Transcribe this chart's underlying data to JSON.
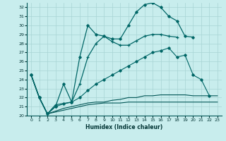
{
  "xlabel": "Humidex (Indice chaleur)",
  "bg_color": "#c8eded",
  "grid_color": "#a8d4d4",
  "xlim": [
    -0.5,
    23.5
  ],
  "ylim": [
    20,
    32.5
  ],
  "yticks": [
    20,
    21,
    22,
    23,
    24,
    25,
    26,
    27,
    28,
    29,
    30,
    31,
    32
  ],
  "xticks": [
    0,
    1,
    2,
    3,
    4,
    5,
    6,
    7,
    8,
    9,
    10,
    11,
    12,
    13,
    14,
    15,
    16,
    17,
    18,
    19,
    20,
    21,
    22,
    23
  ],
  "series1_x": [
    0,
    1,
    2,
    3,
    4,
    5,
    6,
    7,
    8,
    9,
    10,
    11,
    12,
    13,
    14,
    15,
    16,
    17,
    18,
    19,
    20
  ],
  "series1_y": [
    24.5,
    22.0,
    20.2,
    21.0,
    23.5,
    21.5,
    26.5,
    30.0,
    29.0,
    28.8,
    28.5,
    28.5,
    30.0,
    31.5,
    32.3,
    32.5,
    32.0,
    31.0,
    30.5,
    28.8,
    28.7
  ],
  "series2_x": [
    0,
    1,
    2,
    3,
    5,
    6,
    7,
    8,
    9,
    10,
    11,
    12,
    13,
    14,
    15,
    16,
    17,
    18
  ],
  "series2_y": [
    24.5,
    22.0,
    20.2,
    21.2,
    21.5,
    23.5,
    26.5,
    28.0,
    28.8,
    28.2,
    27.8,
    27.8,
    28.3,
    28.8,
    29.0,
    29.0,
    28.8,
    28.7
  ],
  "series3_x": [
    0,
    1,
    2,
    3,
    4,
    5,
    6,
    7,
    8,
    9,
    10,
    11,
    12,
    13,
    14,
    15,
    16,
    17,
    18,
    19,
    20,
    21,
    22
  ],
  "series3_y": [
    24.5,
    22.0,
    20.2,
    21.0,
    21.3,
    21.5,
    22.0,
    22.8,
    23.5,
    24.0,
    24.5,
    25.0,
    25.5,
    26.0,
    26.5,
    27.0,
    27.2,
    27.5,
    26.5,
    26.7,
    24.5,
    24.0,
    22.2
  ],
  "series4_x": [
    0,
    1,
    2,
    3,
    4,
    5,
    6,
    7,
    8,
    9,
    10,
    11,
    12,
    13,
    14,
    15,
    16,
    17,
    18,
    19,
    20,
    21,
    22,
    23
  ],
  "series4_y": [
    24.5,
    22.0,
    20.2,
    20.5,
    20.8,
    21.0,
    21.2,
    21.4,
    21.5,
    21.5,
    21.7,
    21.8,
    22.0,
    22.0,
    22.2,
    22.2,
    22.3,
    22.3,
    22.3,
    22.3,
    22.2,
    22.2,
    22.2,
    22.2
  ],
  "series5_x": [
    0,
    1,
    2,
    3,
    4,
    5,
    6,
    7,
    8,
    9,
    10,
    11,
    12,
    13,
    14,
    15,
    16,
    17,
    18,
    19,
    20,
    21,
    22,
    23
  ],
  "series5_y": [
    24.5,
    22.0,
    20.2,
    20.4,
    20.6,
    20.8,
    21.0,
    21.2,
    21.3,
    21.4,
    21.4,
    21.4,
    21.5,
    21.5,
    21.5,
    21.5,
    21.5,
    21.5,
    21.5,
    21.5,
    21.5,
    21.5,
    21.5,
    21.5
  ],
  "line_color_dark": "#005555",
  "line_color_mid": "#006666",
  "marker_color": "#006666"
}
